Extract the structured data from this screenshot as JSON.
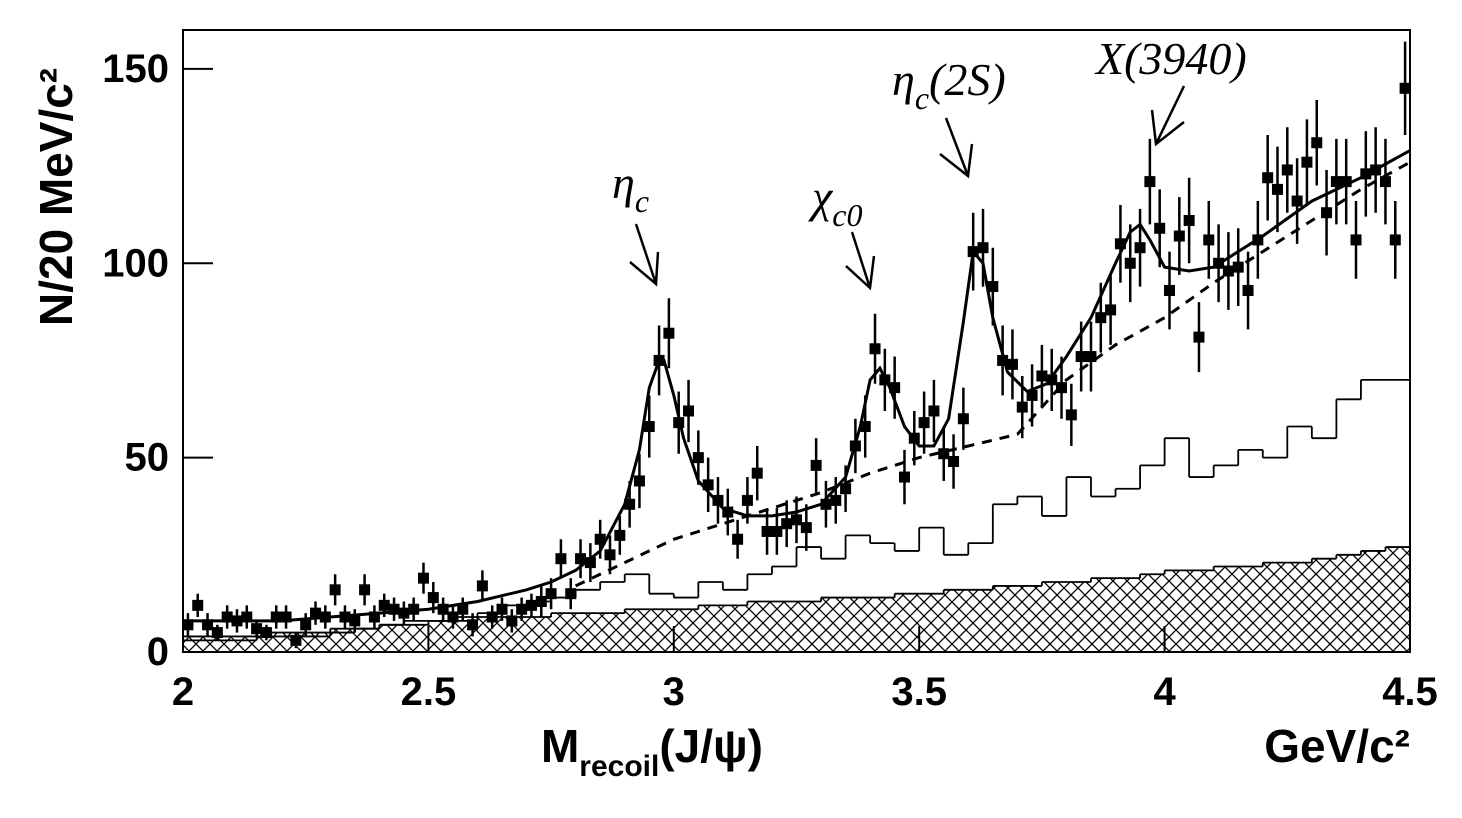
{
  "chart_data": {
    "type": "hist-fit",
    "y_label": "N/20 MeV/c²",
    "x_label": {
      "main": "M",
      "sub": "recoil",
      "rest": "(J/ψ)"
    },
    "x_unit": "GeV/c²",
    "annotations": [
      {
        "text": "η",
        "sub": "c"
      },
      {
        "text": "χ",
        "sub": "c0"
      },
      {
        "text": "η",
        "sub": "c",
        "suffix": "(2S)"
      },
      {
        "text": "X(3940)"
      }
    ],
    "xlim": [
      2,
      4.5
    ],
    "ylim": [
      0,
      160
    ],
    "xticks": [
      2,
      2.5,
      3,
      3.5,
      4,
      4.5
    ],
    "yticks": [
      0,
      50,
      100,
      150
    ],
    "color": "#000000",
    "data": {
      "x": [
        2.01,
        2.03,
        2.05,
        2.07,
        2.09,
        2.11,
        2.13,
        2.15,
        2.17,
        2.19,
        2.21,
        2.23,
        2.25,
        2.27,
        2.29,
        2.31,
        2.33,
        2.35,
        2.37,
        2.39,
        2.41,
        2.43,
        2.45,
        2.47,
        2.49,
        2.51,
        2.53,
        2.55,
        2.57,
        2.59,
        2.61,
        2.63,
        2.65,
        2.67,
        2.69,
        2.71,
        2.73,
        2.75,
        2.77,
        2.79,
        2.81,
        2.83,
        2.85,
        2.87,
        2.89,
        2.91,
        2.93,
        2.95,
        2.97,
        2.99,
        3.01,
        3.03,
        3.05,
        3.07,
        3.09,
        3.11,
        3.13,
        3.15,
        3.17,
        3.19,
        3.21,
        3.23,
        3.25,
        3.27,
        3.29,
        3.31,
        3.33,
        3.35,
        3.37,
        3.39,
        3.41,
        3.43,
        3.45,
        3.47,
        3.49,
        3.51,
        3.53,
        3.55,
        3.57,
        3.59,
        3.61,
        3.63,
        3.65,
        3.67,
        3.69,
        3.71,
        3.73,
        3.75,
        3.77,
        3.79,
        3.81,
        3.83,
        3.85,
        3.87,
        3.89,
        3.91,
        3.93,
        3.95,
        3.97,
        3.99,
        4.01,
        4.03,
        4.05,
        4.07,
        4.09,
        4.11,
        4.13,
        4.15,
        4.17,
        4.19,
        4.21,
        4.23,
        4.25,
        4.27,
        4.29,
        4.31,
        4.33,
        4.35,
        4.37,
        4.39,
        4.41,
        4.43,
        4.45,
        4.47,
        4.49
      ],
      "values": [
        7,
        12,
        7,
        5,
        9,
        8,
        9,
        6,
        5,
        9,
        9,
        3,
        7,
        10,
        9,
        16,
        9,
        8,
        16,
        9,
        12,
        11,
        10,
        11,
        19,
        14,
        11,
        9,
        11,
        7,
        17,
        9,
        11,
        8,
        11,
        12,
        13,
        15,
        24,
        15,
        24,
        23,
        29,
        25,
        30,
        38,
        44,
        58,
        75,
        82,
        59,
        62,
        50,
        43,
        39,
        36,
        29,
        39,
        46,
        31,
        31,
        33,
        34,
        32,
        48,
        38,
        39,
        42,
        53,
        58,
        78,
        70,
        68,
        45,
        55,
        59,
        62,
        51,
        49,
        60,
        103,
        104,
        94,
        75,
        74,
        63,
        66,
        71,
        70,
        68,
        61,
        76,
        76,
        86,
        88,
        105,
        100,
        104,
        121,
        109,
        93,
        107,
        111,
        81,
        106,
        100,
        98,
        99,
        93,
        106,
        122,
        119,
        124,
        116,
        126,
        131,
        113,
        121,
        121,
        106,
        123,
        124,
        121,
        106,
        145
      ],
      "errors": [
        3,
        3,
        3,
        2,
        3,
        3,
        3,
        2,
        2,
        3,
        3,
        2,
        3,
        3,
        3,
        4,
        3,
        3,
        4,
        3,
        3,
        3,
        3,
        3,
        4,
        4,
        3,
        3,
        3,
        3,
        4,
        3,
        3,
        3,
        3,
        3,
        4,
        4,
        5,
        4,
        5,
        5,
        5,
        5,
        5,
        6,
        7,
        8,
        9,
        9,
        8,
        8,
        7,
        7,
        6,
        6,
        5,
        6,
        7,
        6,
        6,
        6,
        6,
        6,
        7,
        6,
        6,
        6,
        7,
        8,
        9,
        8,
        8,
        7,
        7,
        8,
        8,
        7,
        7,
        8,
        10,
        10,
        10,
        9,
        9,
        8,
        8,
        8,
        8,
        8,
        8,
        9,
        9,
        9,
        9,
        10,
        10,
        10,
        11,
        10,
        10,
        10,
        11,
        9,
        10,
        10,
        10,
        10,
        10,
        10,
        11,
        11,
        11,
        11,
        11,
        11,
        11,
        11,
        11,
        10,
        11,
        11,
        11,
        10,
        12
      ]
    },
    "fit": {
      "x": [
        2.0,
        2.1,
        2.2,
        2.3,
        2.4,
        2.5,
        2.6,
        2.7,
        2.75,
        2.8,
        2.85,
        2.9,
        2.93,
        2.95,
        2.97,
        2.98,
        3.0,
        3.02,
        3.05,
        3.1,
        3.15,
        3.2,
        3.25,
        3.3,
        3.35,
        3.38,
        3.4,
        3.42,
        3.44,
        3.47,
        3.5,
        3.53,
        3.56,
        3.59,
        3.61,
        3.63,
        3.65,
        3.68,
        3.72,
        3.76,
        3.8,
        3.85,
        3.9,
        3.93,
        3.95,
        3.97,
        4.0,
        4.05,
        4.1,
        4.2,
        4.3,
        4.4,
        4.5
      ],
      "values": [
        8,
        8,
        8,
        9,
        10,
        11,
        13,
        16,
        18,
        21,
        26,
        38,
        52,
        68,
        75,
        75,
        66,
        55,
        44,
        37,
        35,
        35,
        36,
        38,
        45,
        58,
        70,
        73,
        68,
        58,
        53,
        53,
        60,
        85,
        103,
        100,
        86,
        72,
        67,
        69,
        76,
        86,
        100,
        108,
        110,
        106,
        99,
        98,
        99,
        107,
        116,
        122,
        129
      ]
    },
    "background": {
      "x": [
        2.8,
        2.9,
        3.0,
        3.1,
        3.2,
        3.3,
        3.4,
        3.5,
        3.6,
        3.7,
        3.75,
        3.8,
        3.9,
        4.0,
        4.1,
        4.2,
        4.3,
        4.4,
        4.5
      ],
      "values": [
        17,
        23,
        29,
        33,
        37,
        41,
        46,
        50,
        53,
        56,
        63,
        70,
        79,
        86,
        95,
        103,
        111,
        119,
        126
      ]
    },
    "hist_open": {
      "bins": [
        2,
        2.05,
        2.1,
        2.15,
        2.2,
        2.25,
        2.3,
        2.35,
        2.4,
        2.45,
        2.5,
        2.55,
        2.6,
        2.65,
        2.7,
        2.75,
        2.8,
        2.85,
        2.9,
        2.95,
        3,
        3.05,
        3.1,
        3.15,
        3.2,
        3.25,
        3.3,
        3.35,
        3.4,
        3.45,
        3.5,
        3.55,
        3.6,
        3.65,
        3.7,
        3.75,
        3.8,
        3.85,
        3.9,
        3.95,
        4,
        4.05,
        4.1,
        4.15,
        4.2,
        4.25,
        4.3,
        4.35,
        4.4,
        4.45,
        4.5
      ],
      "values": [
        3,
        3,
        3,
        4,
        4,
        4,
        5,
        6,
        7,
        8,
        8,
        9,
        10,
        12,
        13,
        14,
        16,
        18,
        20,
        15,
        14,
        18,
        16,
        20,
        22,
        27,
        24,
        30,
        28,
        26,
        32,
        25,
        28,
        38,
        40,
        35,
        45,
        40,
        42,
        48,
        55,
        45,
        48,
        52,
        50,
        58,
        55,
        65,
        70,
        70
      ]
    },
    "hist_hatched": {
      "bins": [
        2,
        2.05,
        2.1,
        2.15,
        2.2,
        2.25,
        2.3,
        2.35,
        2.4,
        2.45,
        2.5,
        2.55,
        2.6,
        2.65,
        2.7,
        2.75,
        2.8,
        2.85,
        2.9,
        2.95,
        3,
        3.05,
        3.1,
        3.15,
        3.2,
        3.25,
        3.3,
        3.35,
        3.4,
        3.45,
        3.5,
        3.55,
        3.6,
        3.65,
        3.7,
        3.75,
        3.8,
        3.85,
        3.9,
        3.95,
        4,
        4.05,
        4.1,
        4.15,
        4.2,
        4.25,
        4.3,
        4.35,
        4.4,
        4.45,
        4.5
      ],
      "values": [
        4,
        4,
        4,
        5,
        5,
        5,
        6,
        6,
        7,
        7,
        8,
        8,
        9,
        9,
        9,
        10,
        10,
        10,
        11,
        11,
        11,
        12,
        12,
        13,
        13,
        13,
        14,
        14,
        14,
        15,
        15,
        16,
        16,
        17,
        17,
        18,
        18,
        19,
        19,
        20,
        21,
        21,
        22,
        22,
        23,
        23,
        24,
        25,
        26,
        27
      ]
    }
  }
}
